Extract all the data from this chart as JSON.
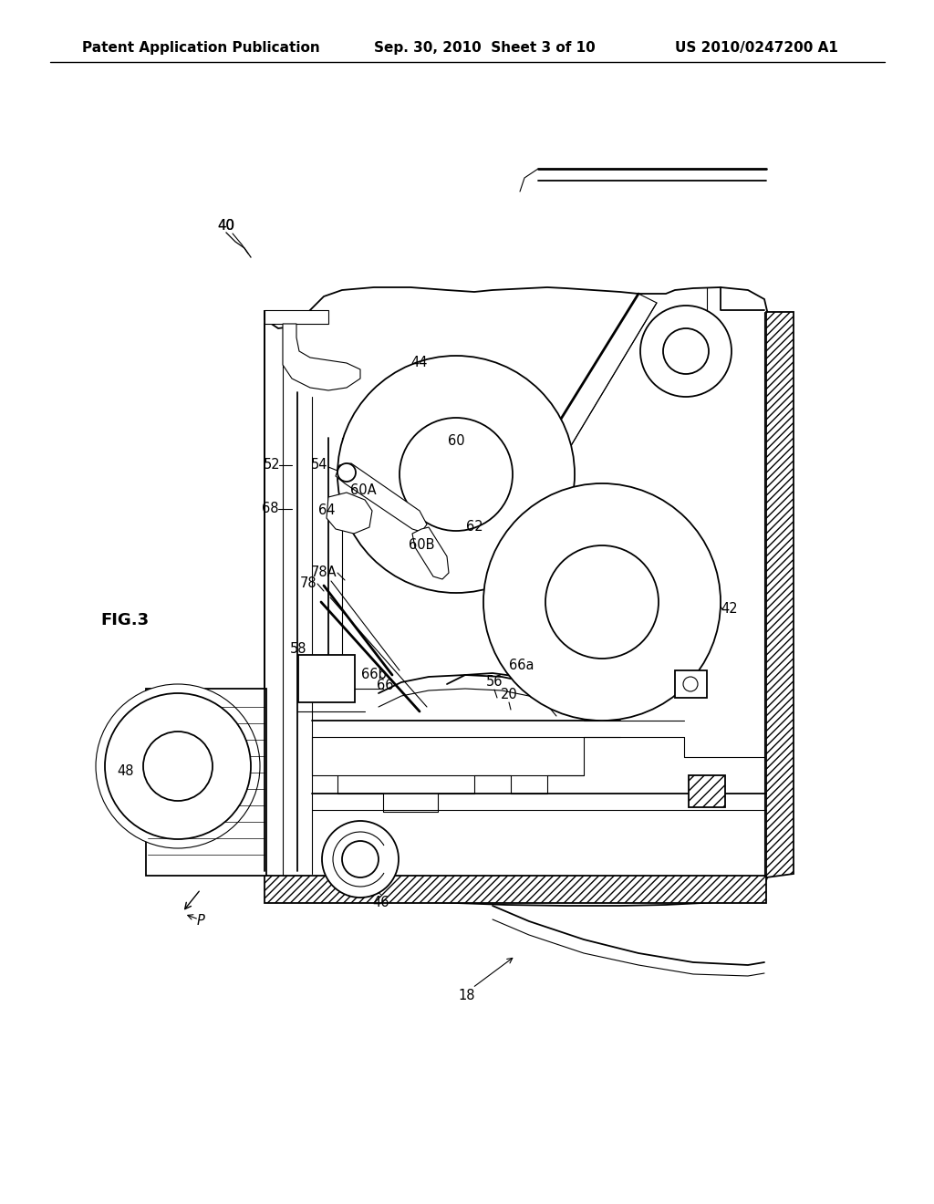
{
  "header_left": "Patent Application Publication",
  "header_mid": "Sep. 30, 2010  Sheet 3 of 10",
  "header_right": "US 2010/0247200 A1",
  "fig_label": "FIG.3",
  "bg_color": "#ffffff",
  "lc": "#000000"
}
